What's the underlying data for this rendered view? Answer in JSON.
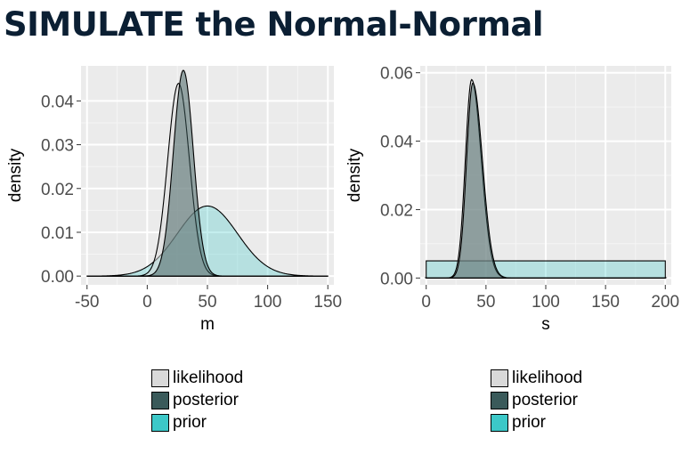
{
  "title": "SIMULATE the Normal-Normal",
  "chart_data": [
    {
      "type": "area",
      "xlabel": "m",
      "ylabel": "density",
      "xlim": [
        -55,
        155
      ],
      "ylim": [
        -0.002,
        0.048
      ],
      "xticks": [
        -50,
        0,
        50,
        100,
        150
      ],
      "xtick_labels": [
        "-50",
        "0",
        "50",
        "100",
        "150"
      ],
      "yticks": [
        0,
        0.01,
        0.02,
        0.03,
        0.04
      ],
      "ytick_labels": [
        "0.00",
        "0.01",
        "0.02",
        "0.03",
        "0.04"
      ],
      "grid": true,
      "legend_position": "bottom",
      "legend": [
        "likelihood",
        "posterior",
        "prior"
      ],
      "series": [
        {
          "name": "prior",
          "color": "#3cc8c8",
          "distribution": "normal",
          "mean": 50,
          "sd": 25,
          "peak": 0.016
        },
        {
          "name": "likelihood",
          "color": "#d9d9d9",
          "distribution": "normal",
          "mean": 26,
          "sd": 9,
          "peak": 0.044
        },
        {
          "name": "posterior",
          "color": "#3a5a5a",
          "distribution": "normal",
          "mean": 30,
          "sd": 8.3,
          "peak": 0.047
        }
      ]
    },
    {
      "type": "area",
      "xlabel": "s",
      "ylabel": "density",
      "xlim": [
        -5,
        205
      ],
      "ylim": [
        -0.002,
        0.062
      ],
      "xticks": [
        0,
        50,
        100,
        150,
        200
      ],
      "xtick_labels": [
        "0",
        "50",
        "100",
        "150",
        "200"
      ],
      "yticks": [
        0,
        0.02,
        0.04,
        0.06
      ],
      "ytick_labels": [
        "0.00",
        "0.02",
        "0.04",
        "0.06"
      ],
      "grid": true,
      "legend_position": "bottom",
      "legend": [
        "likelihood",
        "posterior",
        "prior"
      ],
      "series": [
        {
          "name": "prior",
          "color": "#3cc8c8",
          "distribution": "uniform",
          "min": 0,
          "max": 200,
          "peak": 0.005
        },
        {
          "name": "likelihood",
          "color": "#d9d9d9",
          "distribution": "skewed",
          "mode": 38,
          "sd_left": 5.2,
          "sd_right": 8,
          "peak": 0.058
        },
        {
          "name": "posterior",
          "color": "#3a5a5a",
          "distribution": "skewed",
          "mode": 39,
          "sd_left": 5.2,
          "sd_right": 8,
          "peak": 0.057
        }
      ]
    }
  ]
}
